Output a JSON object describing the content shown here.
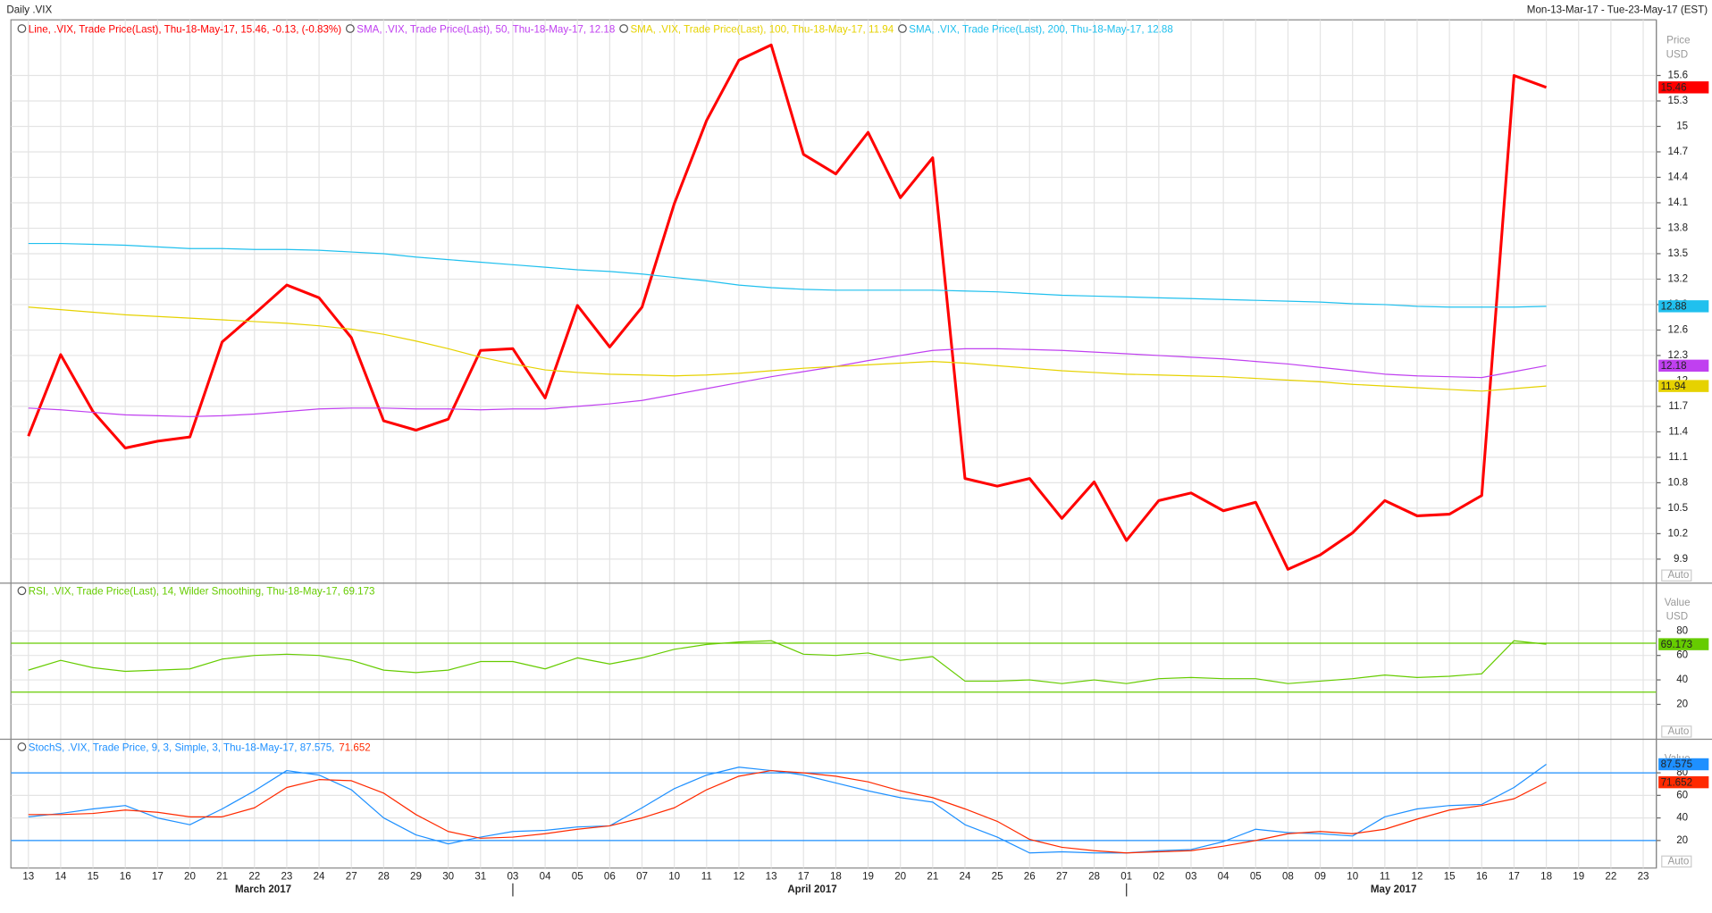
{
  "header": {
    "title": "Daily .VIX",
    "date_range": "Mon-13-Mar-17 - Tue-23-May-17 (EST)"
  },
  "chart_data": [
    {
      "type": "line",
      "y_label": "Price",
      "y_unit": "USD",
      "scale_mode": "Auto",
      "grid": true,
      "ylim": [
        9.63,
        16.23
      ],
      "yticks": [
        9.9,
        10.2,
        10.5,
        10.8,
        11.1,
        11.4,
        11.7,
        12,
        12.3,
        12.6,
        12.9,
        13.2,
        13.5,
        13.8,
        14.1,
        14.4,
        14.7,
        15,
        15.3,
        15.6
      ],
      "series": [
        {
          "name": "Line, .VIX, Trade Price(Last), Thu-18-May-17, 15.46, -0.13, (-0.83%)",
          "color": "#ff0000",
          "line_width": 2.5,
          "values": [
            11.35,
            12.31,
            11.64,
            11.21,
            11.29,
            11.34,
            12.46,
            12.79,
            13.13,
            12.98,
            12.51,
            11.53,
            11.42,
            11.55,
            12.36,
            12.38,
            11.8,
            12.89,
            12.4,
            12.87,
            14.09,
            15.07,
            15.78,
            15.96,
            14.67,
            14.44,
            14.93,
            14.16,
            14.63,
            10.85,
            10.76,
            10.85,
            10.38,
            10.81,
            10.12,
            10.59,
            10.68,
            10.47,
            10.57,
            9.78,
            9.95,
            10.21,
            10.59,
            10.41,
            10.43,
            10.65,
            15.6,
            15.46,
            null,
            null,
            null
          ]
        },
        {
          "name": "SMA, .VIX, Trade Price(Last), 50, Thu-18-May-17, 12.18",
          "color": "#c040f0",
          "line_width": 1,
          "values": [
            11.68,
            11.66,
            11.63,
            11.6,
            11.59,
            11.58,
            11.59,
            11.61,
            11.64,
            11.67,
            11.68,
            11.68,
            11.67,
            11.67,
            11.66,
            11.67,
            11.67,
            11.7,
            11.73,
            11.77,
            11.84,
            11.91,
            11.98,
            12.05,
            12.11,
            12.17,
            12.24,
            12.3,
            12.36,
            12.38,
            12.38,
            12.37,
            12.36,
            12.34,
            12.32,
            12.3,
            12.28,
            12.26,
            12.23,
            12.2,
            12.16,
            12.12,
            12.08,
            12.06,
            12.05,
            12.04,
            12.11,
            12.18,
            null,
            null,
            null
          ]
        },
        {
          "name": "SMA, .VIX, Trade Price(Last), 100, Thu-18-May-17, 11.94",
          "color": "#e6d200",
          "line_width": 1,
          "values": [
            12.87,
            12.84,
            12.81,
            12.78,
            12.76,
            12.74,
            12.72,
            12.7,
            12.68,
            12.65,
            12.61,
            12.55,
            12.47,
            12.38,
            12.28,
            12.2,
            12.13,
            12.1,
            12.08,
            12.07,
            12.06,
            12.07,
            12.09,
            12.12,
            12.15,
            12.17,
            12.19,
            12.21,
            12.23,
            12.21,
            12.18,
            12.15,
            12.12,
            12.1,
            12.08,
            12.07,
            12.06,
            12.05,
            12.03,
            12.01,
            11.99,
            11.96,
            11.94,
            11.92,
            11.9,
            11.88,
            11.91,
            11.94,
            null,
            null,
            null
          ]
        },
        {
          "name": "SMA, .VIX, Trade Price(Last), 200, Thu-18-May-17, 12.88",
          "color": "#20c0ee",
          "line_width": 1,
          "values": [
            13.62,
            13.62,
            13.61,
            13.6,
            13.58,
            13.56,
            13.56,
            13.55,
            13.55,
            13.54,
            13.52,
            13.5,
            13.46,
            13.43,
            13.4,
            13.37,
            13.34,
            13.31,
            13.29,
            13.26,
            13.22,
            13.18,
            13.13,
            13.1,
            13.08,
            13.07,
            13.07,
            13.07,
            13.07,
            13.06,
            13.05,
            13.03,
            13.01,
            13.0,
            12.99,
            12.98,
            12.97,
            12.96,
            12.95,
            12.94,
            12.93,
            12.91,
            12.9,
            12.88,
            12.87,
            12.87,
            12.87,
            12.88,
            null,
            null,
            null
          ]
        }
      ]
    },
    {
      "type": "line",
      "y_label": "Value",
      "y_unit": "USD",
      "scale_mode": "Auto",
      "ylim": [
        -7.6,
        118.2
      ],
      "yticks": [
        20,
        40,
        60,
        80
      ],
      "levels": [
        30,
        70
      ],
      "level_color": "#66cc00",
      "series": [
        {
          "name": "RSI, .VIX, Trade Price(Last), 14, Wilder Smoothing, Thu-18-May-17, 69.173",
          "color": "#66cc00",
          "line_width": 1,
          "values": [
            48,
            56,
            50,
            47,
            48,
            49,
            57,
            60,
            61,
            60,
            56,
            48,
            46,
            48,
            55,
            55,
            49,
            58,
            53,
            58,
            65,
            69,
            71,
            72,
            61,
            60,
            62,
            56,
            59,
            39,
            39,
            40,
            37,
            40,
            37,
            41,
            42,
            41,
            41,
            37,
            39,
            41,
            44,
            42,
            43,
            45,
            72,
            69.173,
            null,
            null,
            null
          ]
        }
      ]
    },
    {
      "type": "line",
      "y_label": "Value",
      "scale_mode": "Auto",
      "ylim": [
        -4.4,
        108.8
      ],
      "yticks": [
        20,
        40,
        60,
        80
      ],
      "levels": [
        20,
        80
      ],
      "level_color": "#1e90ff",
      "categories": [
        "13",
        "14",
        "15",
        "16",
        "17",
        "20",
        "21",
        "22",
        "23",
        "24",
        "27",
        "28",
        "29",
        "30",
        "31",
        "03",
        "04",
        "05",
        "06",
        "07",
        "10",
        "11",
        "12",
        "13",
        "17",
        "18",
        "19",
        "20",
        "21",
        "24",
        "25",
        "26",
        "27",
        "28",
        "01",
        "02",
        "03",
        "04",
        "05",
        "08",
        "09",
        "10",
        "11",
        "12",
        "15",
        "16",
        "17",
        "18",
        "19",
        "22",
        "23"
      ],
      "months": [
        "March 2017",
        "April 2017",
        "May 2017"
      ],
      "series": [
        {
          "name": "StochS, .VIX, Trade Price, 9, 3, Simple, 3, Thu-18-May-17, 87.575,",
          "color": "#1e90ff",
          "line_width": 1,
          "values": [
            41,
            44,
            48,
            51,
            40,
            34,
            48,
            64,
            82,
            78,
            65,
            40,
            25,
            17,
            23,
            28,
            29,
            32,
            33,
            49,
            66,
            78,
            85,
            82,
            78,
            71,
            64,
            58,
            54,
            34,
            23,
            9,
            10,
            9,
            9,
            11,
            12,
            19,
            30,
            27,
            26,
            24,
            41,
            48,
            51,
            52,
            67,
            87.575,
            null,
            null,
            null
          ]
        },
        {
          "name": "71.652",
          "color": "#ff2a00",
          "line_width": 1,
          "values": [
            43,
            43,
            44,
            47,
            45,
            41,
            41,
            49,
            67,
            74,
            73,
            62,
            43,
            28,
            22,
            23,
            26,
            30,
            33,
            40,
            49,
            65,
            77,
            82,
            80,
            77,
            72,
            64,
            58,
            48,
            37,
            21,
            14,
            11,
            9,
            10,
            11,
            15,
            20,
            26,
            28,
            26,
            30,
            39,
            47,
            51,
            57,
            71.652,
            null,
            null,
            null
          ]
        }
      ]
    }
  ]
}
